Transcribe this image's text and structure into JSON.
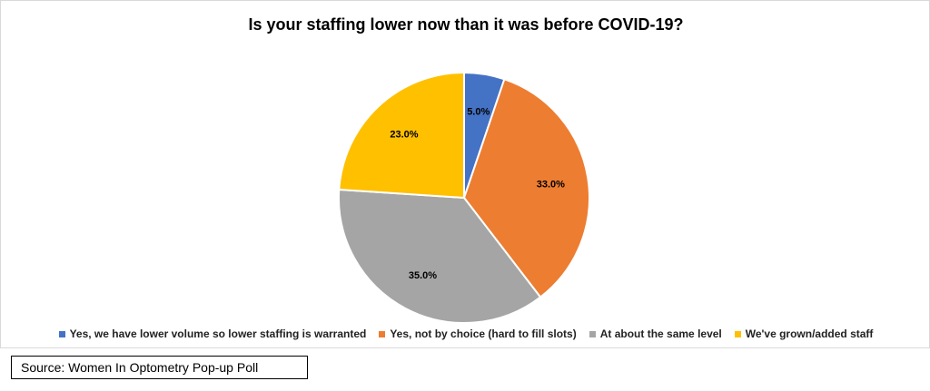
{
  "source_note": "Source: Women In Optometry Pop-up Poll",
  "chart_data": {
    "type": "pie",
    "title": "Is your staffing lower now than it was before COVID-19?",
    "categories": [
      "Yes, we have lower volume so lower staffing is warranted",
      "Yes, not by choice (hard to fill slots)",
      "At about the same level",
      "We've grown/added staff"
    ],
    "values": [
      5.0,
      33.0,
      35.0,
      23.0
    ],
    "data_labels": [
      "5.0%",
      "33.0%",
      "35.0%",
      "23.0%"
    ],
    "colors": [
      "#4472c4",
      "#ed7d31",
      "#a5a5a5",
      "#ffc000"
    ],
    "start_angle_deg": 0,
    "direction": "clockwise",
    "legend_position": "bottom"
  }
}
